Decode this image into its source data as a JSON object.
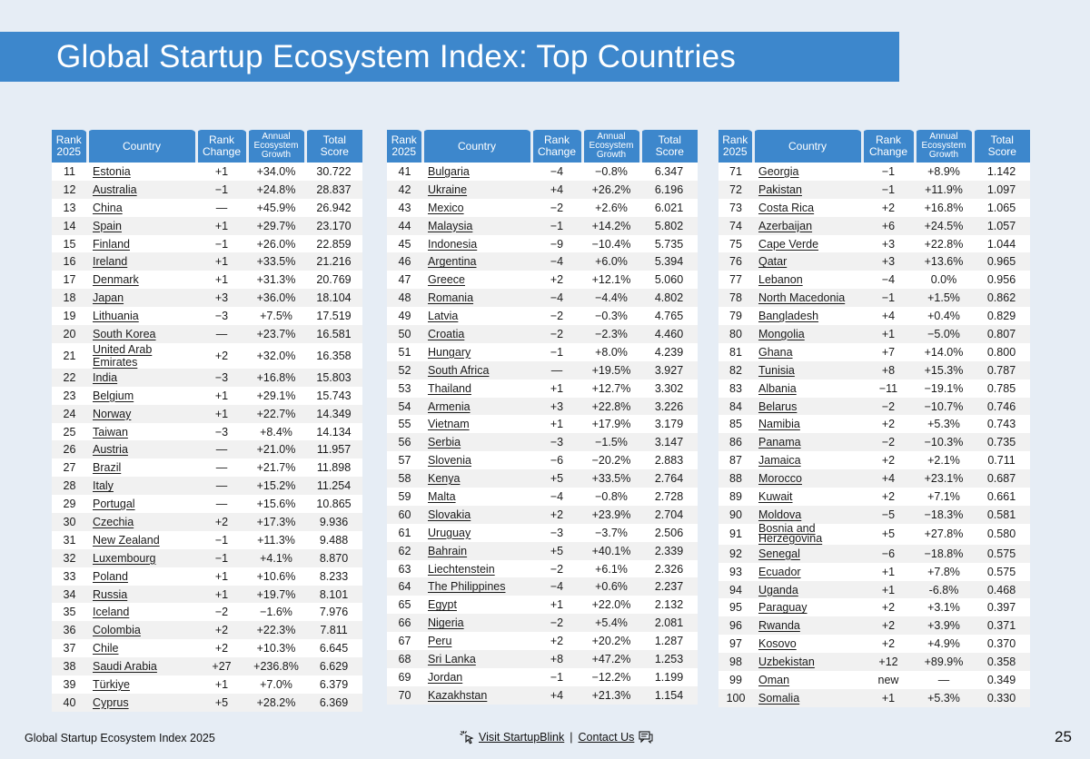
{
  "title": "Global Startup Ecosystem Index: Top Countries",
  "headers": {
    "rank": "Rank 2025",
    "country": "Country",
    "change": "Rank Change",
    "growth": "Annual Ecosystem Growth",
    "score": "Total Score"
  },
  "columns": [
    [
      [
        "11",
        "Estonia",
        "+1",
        "+34.0%",
        "30.722"
      ],
      [
        "12",
        "Australia",
        "−1",
        "+24.8%",
        "28.837"
      ],
      [
        "13",
        "China",
        "—",
        "+45.9%",
        "26.942"
      ],
      [
        "14",
        "Spain",
        "+1",
        "+29.7%",
        "23.170"
      ],
      [
        "15",
        "Finland",
        "−1",
        "+26.0%",
        "22.859"
      ],
      [
        "16",
        "Ireland",
        "+1",
        "+33.5%",
        "21.216"
      ],
      [
        "17",
        "Denmark",
        "+1",
        "+31.3%",
        "20.769"
      ],
      [
        "18",
        "Japan",
        "+3",
        "+36.0%",
        "18.104"
      ],
      [
        "19",
        "Lithuania",
        "−3",
        "+7.5%",
        "17.519"
      ],
      [
        "20",
        "South Korea",
        "—",
        "+23.7%",
        "16.581"
      ],
      [
        "21",
        "United Arab Emirates",
        "+2",
        "+32.0%",
        "16.358"
      ],
      [
        "22",
        "India",
        "−3",
        "+16.8%",
        "15.803"
      ],
      [
        "23",
        "Belgium",
        "+1",
        "+29.1%",
        "15.743"
      ],
      [
        "24",
        "Norway",
        "+1",
        "+22.7%",
        "14.349"
      ],
      [
        "25",
        "Taiwan",
        "−3",
        "+8.4%",
        "14.134"
      ],
      [
        "26",
        "Austria",
        "—",
        "+21.0%",
        "11.957"
      ],
      [
        "27",
        "Brazil",
        "—",
        "+21.7%",
        "11.898"
      ],
      [
        "28",
        "Italy",
        "—",
        "+15.2%",
        "11.254"
      ],
      [
        "29",
        "Portugal",
        "—",
        "+15.6%",
        "10.865"
      ],
      [
        "30",
        "Czechia",
        "+2",
        "+17.3%",
        "9.936"
      ],
      [
        "31",
        "New Zealand",
        "−1",
        "+11.3%",
        "9.488"
      ],
      [
        "32",
        "Luxembourg",
        "−1",
        "+4.1%",
        "8.870"
      ],
      [
        "33",
        "Poland",
        "+1",
        "+10.6%",
        "8.233"
      ],
      [
        "34",
        "Russia",
        "+1",
        "+19.7%",
        "8.101"
      ],
      [
        "35",
        "Iceland",
        "−2",
        "−1.6%",
        "7.976"
      ],
      [
        "36",
        "Colombia",
        "+2",
        "+22.3%",
        "7.811"
      ],
      [
        "37",
        "Chile",
        "+2",
        "+10.3%",
        "6.645"
      ],
      [
        "38",
        "Saudi Arabia",
        "+27",
        "+236.8%",
        "6.629"
      ],
      [
        "39",
        "Türkiye",
        "+1",
        "+7.0%",
        "6.379"
      ],
      [
        "40",
        "Cyprus",
        "+5",
        "+28.2%",
        "6.369"
      ]
    ],
    [
      [
        "41",
        "Bulgaria",
        "−4",
        "−0.8%",
        "6.347"
      ],
      [
        "42",
        "Ukraine",
        "+4",
        "+26.2%",
        "6.196"
      ],
      [
        "43",
        "Mexico",
        "−2",
        "+2.6%",
        "6.021"
      ],
      [
        "44",
        "Malaysia",
        "−1",
        "+14.2%",
        "5.802"
      ],
      [
        "45",
        "Indonesia",
        "−9",
        "−10.4%",
        "5.735"
      ],
      [
        "46",
        "Argentina",
        "−4",
        "+6.0%",
        "5.394"
      ],
      [
        "47",
        "Greece",
        "+2",
        "+12.1%",
        "5.060"
      ],
      [
        "48",
        "Romania",
        "−4",
        "−4.4%",
        "4.802"
      ],
      [
        "49",
        "Latvia",
        "−2",
        "−0.3%",
        "4.765"
      ],
      [
        "50",
        "Croatia",
        "−2",
        "−2.3%",
        "4.460"
      ],
      [
        "51",
        "Hungary",
        "−1",
        "+8.0%",
        "4.239"
      ],
      [
        "52",
        "South Africa",
        "—",
        "+19.5%",
        "3.927"
      ],
      [
        "53",
        "Thailand",
        "+1",
        "+12.7%",
        "3.302"
      ],
      [
        "54",
        "Armenia",
        "+3",
        "+22.8%",
        "3.226"
      ],
      [
        "55",
        "Vietnam",
        "+1",
        "+17.9%",
        "3.179"
      ],
      [
        "56",
        "Serbia",
        "−3",
        "−1.5%",
        "3.147"
      ],
      [
        "57",
        "Slovenia",
        "−6",
        "−20.2%",
        "2.883"
      ],
      [
        "58",
        "Kenya",
        "+5",
        "+33.5%",
        "2.764"
      ],
      [
        "59",
        "Malta",
        "−4",
        "−0.8%",
        "2.728"
      ],
      [
        "60",
        "Slovakia",
        "+2",
        "+23.9%",
        "2.704"
      ],
      [
        "61",
        "Uruguay",
        "−3",
        "−3.7%",
        "2.506"
      ],
      [
        "62",
        "Bahrain",
        "+5",
        "+40.1%",
        "2.339"
      ],
      [
        "63",
        "Liechtenstein",
        "−2",
        "+6.1%",
        "2.326"
      ],
      [
        "64",
        "The Philippines",
        "−4",
        "+0.6%",
        "2.237"
      ],
      [
        "65",
        "Egypt",
        "+1",
        "+22.0%",
        "2.132"
      ],
      [
        "66",
        "Nigeria",
        "−2",
        "+5.4%",
        "2.081"
      ],
      [
        "67",
        "Peru",
        "+2",
        "+20.2%",
        "1.287"
      ],
      [
        "68",
        "Sri Lanka",
        "+8",
        "+47.2%",
        "1.253"
      ],
      [
        "69",
        "Jordan",
        "−1",
        "−12.2%",
        "1.199"
      ],
      [
        "70",
        "Kazakhstan",
        "+4",
        "+21.3%",
        "1.154"
      ]
    ],
    [
      [
        "71",
        "Georgia",
        "−1",
        "+8.9%",
        "1.142"
      ],
      [
        "72",
        "Pakistan",
        "−1",
        "+11.9%",
        "1.097"
      ],
      [
        "73",
        "Costa Rica",
        "+2",
        "+16.8%",
        "1.065"
      ],
      [
        "74",
        "Azerbaijan",
        "+6",
        "+24.5%",
        "1.057"
      ],
      [
        "75",
        "Cape Verde",
        "+3",
        "+22.8%",
        "1.044"
      ],
      [
        "76",
        "Qatar",
        "+3",
        "+13.6%",
        "0.965"
      ],
      [
        "77",
        "Lebanon",
        "−4",
        "0.0%",
        "0.956"
      ],
      [
        "78",
        "North Macedonia",
        "−1",
        "+1.5%",
        "0.862"
      ],
      [
        "79",
        "Bangladesh",
        "+4",
        "+0.4%",
        "0.829"
      ],
      [
        "80",
        "Mongolia",
        "+1",
        "−5.0%",
        "0.807"
      ],
      [
        "81",
        "Ghana",
        "+7",
        "+14.0%",
        "0.800"
      ],
      [
        "82",
        "Tunisia",
        "+8",
        "+15.3%",
        "0.787"
      ],
      [
        "83",
        "Albania",
        "−11",
        "−19.1%",
        "0.785"
      ],
      [
        "84",
        "Belarus",
        "−2",
        "−10.7%",
        "0.746"
      ],
      [
        "85",
        "Namibia",
        "+2",
        "+5.3%",
        "0.743"
      ],
      [
        "86",
        "Panama",
        "−2",
        "−10.3%",
        "0.735"
      ],
      [
        "87",
        "Jamaica",
        "+2",
        "+2.1%",
        "0.711"
      ],
      [
        "88",
        "Morocco",
        "+4",
        "+23.1%",
        "0.687"
      ],
      [
        "89",
        "Kuwait",
        "+2",
        "+7.1%",
        "0.661"
      ],
      [
        "90",
        "Moldova",
        "−5",
        "−18.3%",
        "0.581"
      ],
      [
        "91",
        "Bosnia and Herzegovina",
        "+5",
        "+27.8%",
        "0.580"
      ],
      [
        "92",
        "Senegal",
        "−6",
        "−18.8%",
        "0.575"
      ],
      [
        "93",
        "Ecuador",
        "+1",
        "+7.8%",
        "0.575"
      ],
      [
        "94",
        "Uganda",
        "+1",
        "-6.8%",
        "0.468"
      ],
      [
        "95",
        "Paraguay",
        "+2",
        "+3.1%",
        "0.397"
      ],
      [
        "96",
        "Rwanda",
        "+2",
        "+3.9%",
        "0.371"
      ],
      [
        "97",
        "Kosovo",
        "+2",
        "+4.9%",
        "0.370"
      ],
      [
        "98",
        "Uzbekistan",
        "+12",
        "+89.9%",
        "0.358"
      ],
      [
        "99",
        "Oman",
        "new",
        "—",
        "0.349"
      ],
      [
        "100",
        "Somalia",
        "+1",
        "+5.3%",
        "0.330"
      ]
    ]
  ],
  "footer": {
    "doc_name": "Global Startup Ecosystem Index 2025",
    "visit_link": "Visit StartupBlink",
    "separator": "|",
    "contact_link": "Contact Us",
    "page_number": "25"
  }
}
